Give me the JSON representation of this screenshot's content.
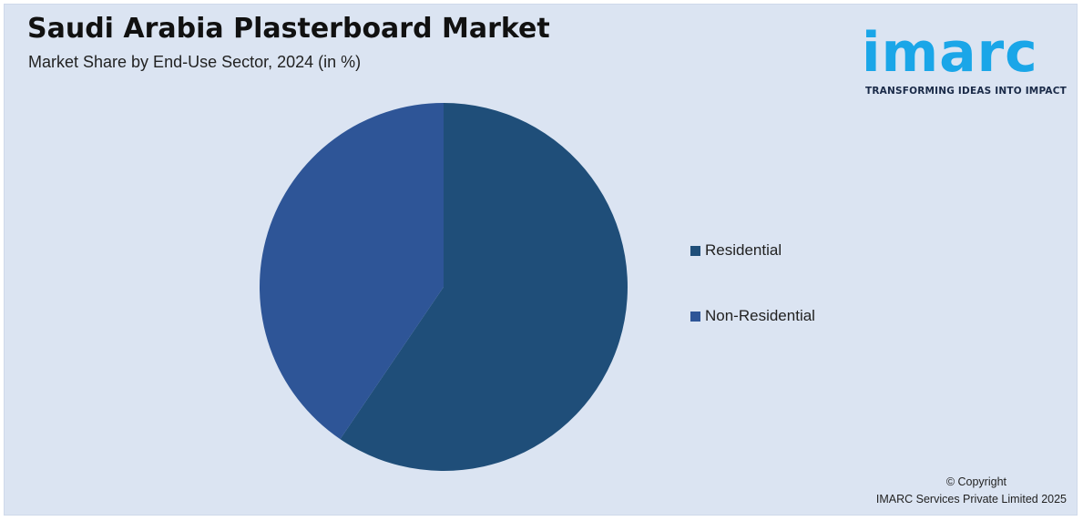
{
  "header": {
    "title": "Saudi Arabia Plasterboard Market",
    "subtitle": "Market Share by End-Use Sector, 2024 (in %)"
  },
  "logo": {
    "word": "imarc",
    "tagline": "TRANSFORMING IDEAS INTO IMPACT",
    "color": "#1aa6e8"
  },
  "chart_data": {
    "type": "pie",
    "title": "Saudi Arabia Plasterboard Market",
    "subtitle": "Market Share by End-Use Sector, 2024 (in %)",
    "categories": [
      "Residential",
      "Non-Residential"
    ],
    "values": [
      59.5,
      40.5
    ],
    "colors": [
      "#1f4e79",
      "#2e5597"
    ],
    "start_angle": "12 o'clock",
    "direction": "clockwise",
    "legend_position": "right"
  },
  "footer": {
    "copyright_line1": "© Copyright",
    "copyright_line2": "IMARC Services Private Limited 2025"
  },
  "colors": {
    "background": "#dbe4f2"
  }
}
